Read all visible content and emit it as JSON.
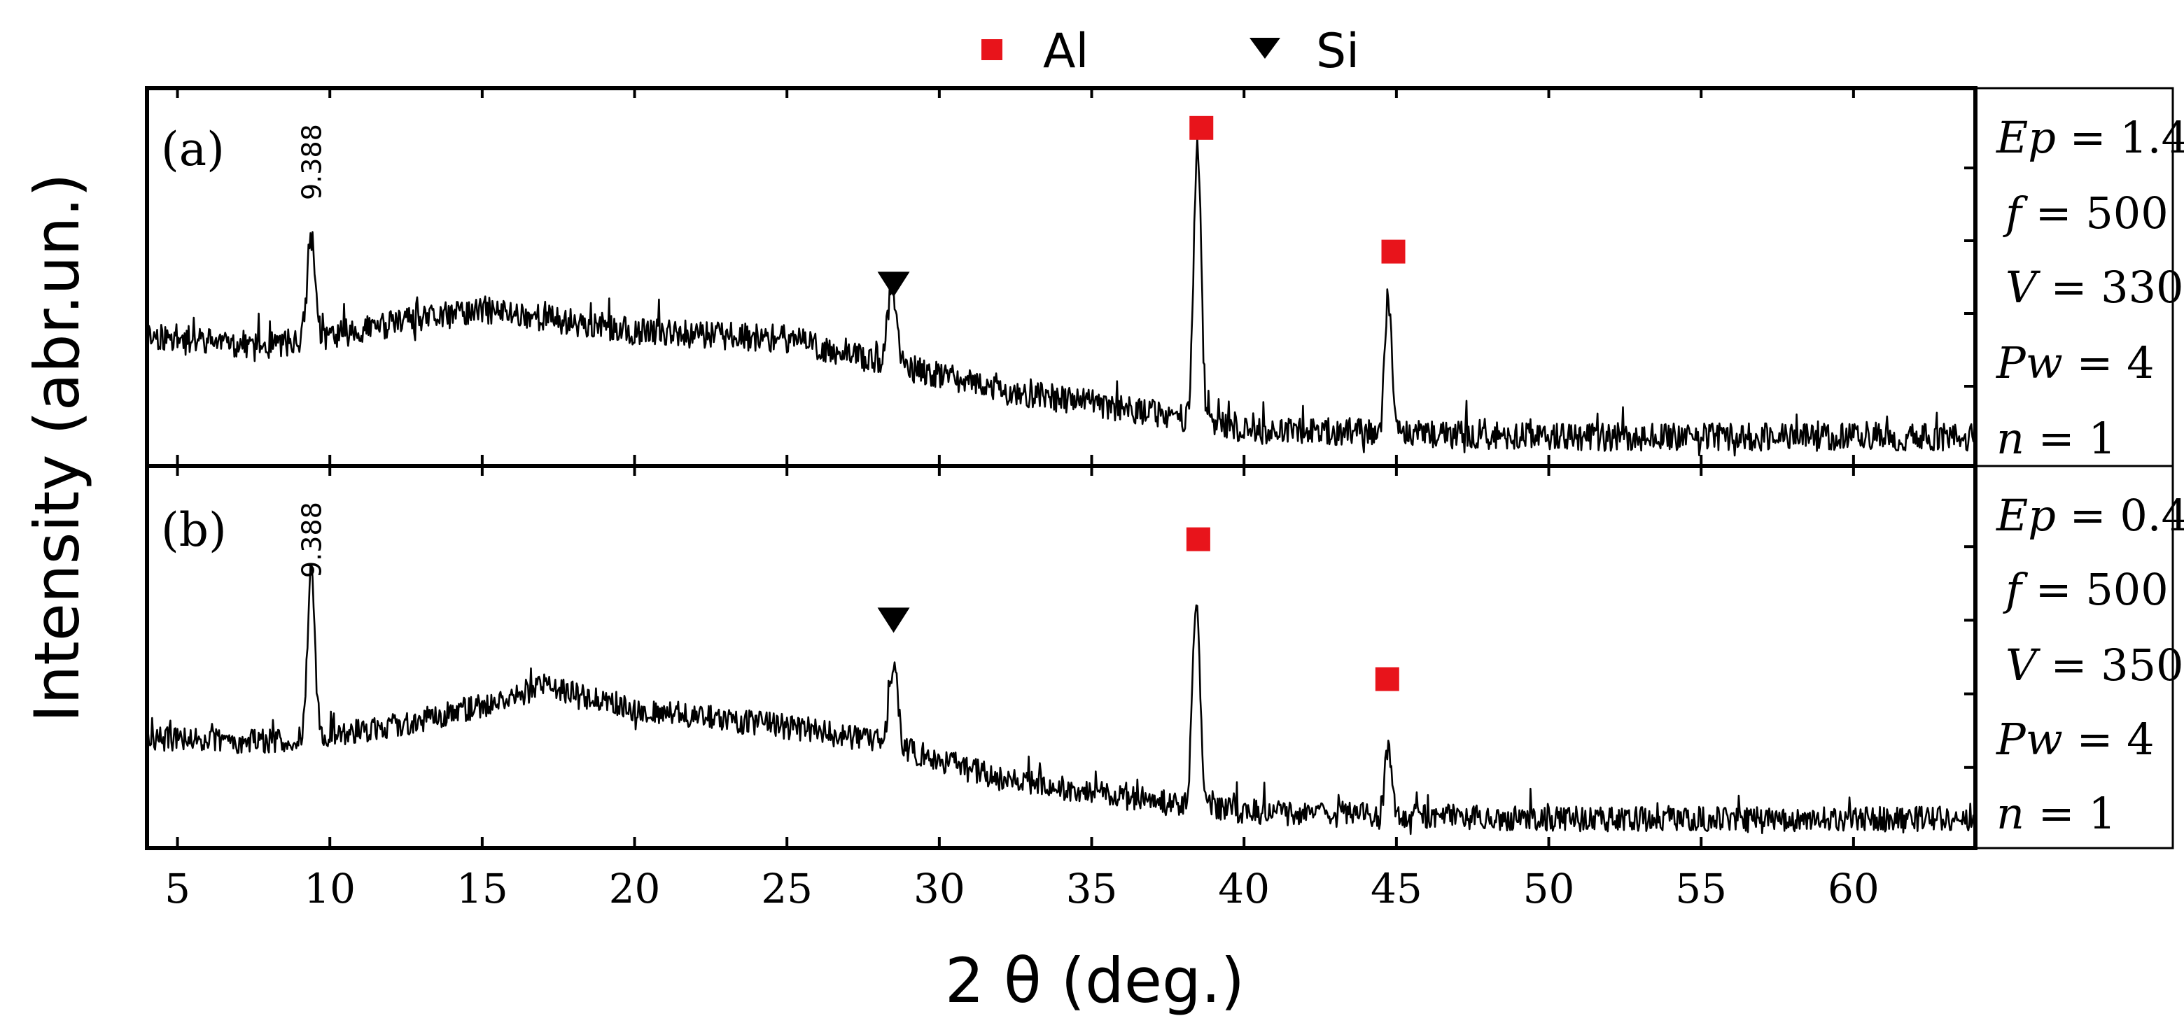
{
  "chart_data": {
    "type": "line",
    "title": "",
    "xlabel": "2 θ (deg.)",
    "ylabel": "Intensity (abr.un.)",
    "xlim": [
      4,
      64
    ],
    "xticks": [
      5,
      10,
      15,
      20,
      25,
      30,
      35,
      40,
      45,
      50,
      55,
      60
    ],
    "xtick_labels": [
      "5",
      "10",
      "15",
      "20",
      "25",
      "30",
      "35",
      "40",
      "45",
      "50",
      "55",
      "60"
    ],
    "ylim": [
      0,
      100
    ],
    "yticks": [
      20,
      40,
      60,
      80
    ],
    "legend": {
      "position": "top-center",
      "entries": [
        {
          "label": "Al",
          "marker": "square",
          "color": "#e8141b"
        },
        {
          "label": "Si",
          "marker": "triangle-down",
          "color": "#000000"
        }
      ]
    },
    "line_color": "#000000",
    "panels": [
      {
        "label": "(a)",
        "peak_label": {
          "text": "9.388",
          "x": 9.388
        },
        "markers": [
          {
            "phase": "Si",
            "x": 28.5,
            "y": 48
          },
          {
            "phase": "Al",
            "x": 38.6,
            "y": 91
          },
          {
            "phase": "Al",
            "x": 44.9,
            "y": 57
          }
        ],
        "params": [
          {
            "name": "Ep",
            "value": "1.4"
          },
          {
            "name": "f",
            "value": "500"
          },
          {
            "name": "V",
            "value": "330"
          },
          {
            "name": "Pw",
            "value": "4"
          },
          {
            "name": "n",
            "value": "1"
          }
        ],
        "baseline": [
          [
            4,
            34
          ],
          [
            8,
            31
          ],
          [
            12,
            37
          ],
          [
            15,
            41
          ],
          [
            17,
            39
          ],
          [
            20,
            35
          ],
          [
            25,
            33
          ],
          [
            28,
            27
          ],
          [
            32,
            19
          ],
          [
            36,
            14
          ],
          [
            40,
            8
          ],
          [
            45,
            7
          ],
          [
            50,
            6
          ],
          [
            55,
            6
          ],
          [
            60,
            6
          ],
          [
            64,
            6
          ]
        ],
        "noise_amplitude": 3.8,
        "noise_seed": 11,
        "peaks": [
          {
            "x": 9.388,
            "height": 28,
            "width": 0.13
          },
          {
            "x": 28.45,
            "height": 22,
            "width": 0.14
          },
          {
            "x": 38.47,
            "height": 77,
            "width": 0.12
          },
          {
            "x": 44.73,
            "height": 38,
            "width": 0.11
          }
        ]
      },
      {
        "label": "(b)",
        "peak_label": {
          "text": "9.388",
          "x": 9.388
        },
        "markers": [
          {
            "phase": "Si",
            "x": 28.5,
            "y": 60
          },
          {
            "phase": "Al",
            "x": 38.5,
            "y": 82
          },
          {
            "phase": "Al",
            "x": 44.7,
            "y": 44
          }
        ],
        "params": [
          {
            "name": "Ep",
            "value": "0.4"
          },
          {
            "name": "f",
            "value": "500"
          },
          {
            "name": "V",
            "value": "350"
          },
          {
            "name": "Pw",
            "value": "4"
          },
          {
            "name": "n",
            "value": "1"
          }
        ],
        "baseline": [
          [
            4,
            28
          ],
          [
            8,
            27
          ],
          [
            12,
            31
          ],
          [
            15,
            37
          ],
          [
            17,
            42
          ],
          [
            20,
            36
          ],
          [
            25,
            31
          ],
          [
            28,
            27
          ],
          [
            32,
            17
          ],
          [
            36,
            12
          ],
          [
            40,
            8
          ],
          [
            45,
            7
          ],
          [
            50,
            6
          ],
          [
            55,
            6
          ],
          [
            60,
            6
          ],
          [
            64,
            6
          ]
        ],
        "noise_amplitude": 3.4,
        "noise_seed": 29,
        "peaks": [
          {
            "x": 9.388,
            "height": 45,
            "width": 0.12
          },
          {
            "x": 28.5,
            "height": 22,
            "width": 0.14
          },
          {
            "x": 38.43,
            "height": 57,
            "width": 0.12
          },
          {
            "x": 44.73,
            "height": 18,
            "width": 0.11
          }
        ]
      }
    ]
  }
}
